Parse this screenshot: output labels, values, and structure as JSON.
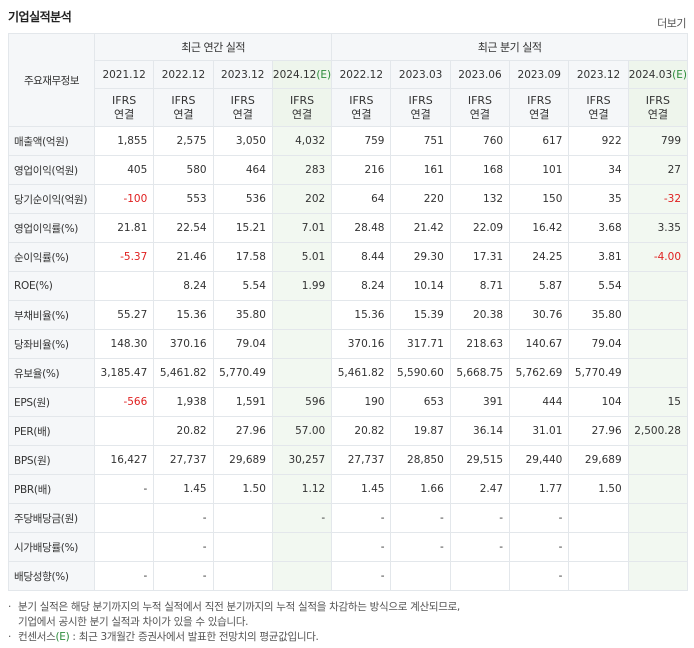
{
  "header": {
    "title": "기업실적분석",
    "more": "더보기"
  },
  "table": {
    "corner": "주요재무정보",
    "annual_label": "최근 연간 실적",
    "quarter_label": "최근 분기 실적",
    "ifrs_top": "IFRS",
    "ifrs_bottom": "연결",
    "annual_periods": [
      "2021.12",
      "2022.12",
      "2023.12",
      "2024.12"
    ],
    "quarter_periods": [
      "2022.12",
      "2023.03",
      "2023.06",
      "2023.09",
      "2023.12",
      "2024.03"
    ],
    "estimate_mark": "(E)",
    "rows": [
      {
        "label": "매출액(억원)",
        "values": [
          "1,855",
          "2,575",
          "3,050",
          "4,032",
          "759",
          "751",
          "760",
          "617",
          "922",
          "799"
        ]
      },
      {
        "label": "영업이익(억원)",
        "values": [
          "405",
          "580",
          "464",
          "283",
          "216",
          "161",
          "168",
          "101",
          "34",
          "27"
        ]
      },
      {
        "label": "당기순이익(억원)",
        "values": [
          "-100",
          "553",
          "536",
          "202",
          "64",
          "220",
          "132",
          "150",
          "35",
          "-32"
        ]
      },
      {
        "label": "영업이익률(%)",
        "values": [
          "21.81",
          "22.54",
          "15.21",
          "7.01",
          "28.48",
          "21.42",
          "22.09",
          "16.42",
          "3.68",
          "3.35"
        ]
      },
      {
        "label": "순이익률(%)",
        "values": [
          "-5.37",
          "21.46",
          "17.58",
          "5.01",
          "8.44",
          "29.30",
          "17.31",
          "24.25",
          "3.81",
          "-4.00"
        ]
      },
      {
        "label": "ROE(%)",
        "values": [
          "",
          "8.24",
          "5.54",
          "1.99",
          "8.24",
          "10.14",
          "8.71",
          "5.87",
          "5.54",
          ""
        ]
      },
      {
        "label": "부채비율(%)",
        "values": [
          "55.27",
          "15.36",
          "35.80",
          "",
          "15.36",
          "15.39",
          "20.38",
          "30.76",
          "35.80",
          ""
        ]
      },
      {
        "label": "당좌비율(%)",
        "values": [
          "148.30",
          "370.16",
          "79.04",
          "",
          "370.16",
          "317.71",
          "218.63",
          "140.67",
          "79.04",
          ""
        ]
      },
      {
        "label": "유보율(%)",
        "values": [
          "3,185.47",
          "5,461.82",
          "5,770.49",
          "",
          "5,461.82",
          "5,590.60",
          "5,668.75",
          "5,762.69",
          "5,770.49",
          ""
        ]
      },
      {
        "label": "EPS(원)",
        "values": [
          "-566",
          "1,938",
          "1,591",
          "596",
          "190",
          "653",
          "391",
          "444",
          "104",
          "15"
        ]
      },
      {
        "label": "PER(배)",
        "values": [
          "",
          "20.82",
          "27.96",
          "57.00",
          "20.82",
          "19.87",
          "36.14",
          "31.01",
          "27.96",
          "2,500.28"
        ]
      },
      {
        "label": "BPS(원)",
        "values": [
          "16,427",
          "27,737",
          "29,689",
          "30,257",
          "27,737",
          "28,850",
          "29,515",
          "29,440",
          "29,689",
          ""
        ]
      },
      {
        "label": "PBR(배)",
        "values": [
          "-",
          "1.45",
          "1.50",
          "1.12",
          "1.45",
          "1.66",
          "2.47",
          "1.77",
          "1.50",
          ""
        ]
      },
      {
        "label": "주당배당금(원)",
        "values": [
          "",
          "-",
          "",
          "-",
          "-",
          "-",
          "-",
          "-",
          "",
          ""
        ]
      },
      {
        "label": "시가배당률(%)",
        "values": [
          "",
          "-",
          "",
          "",
          "-",
          "-",
          "-",
          "-",
          "",
          ""
        ]
      },
      {
        "label": "배당성향(%)",
        "values": [
          "-",
          "-",
          "",
          "",
          "-",
          "",
          "",
          "-",
          "",
          ""
        ]
      }
    ]
  },
  "notes": {
    "line1": "분기 실적은 해당 분기까지의 누적 실적에서 직전 분기까지의 누적 실적을 차감하는 방식으로 계산되므로,",
    "line2": "기업에서 공시한 분기 실적과 차이가 있을 수 있습니다.",
    "line3_pre": "컨센서스",
    "line3_mark": "(E)",
    "line3_post": " : 최근 3개월간 증권사에서 발표한 전망치의 평균값입니다."
  },
  "colors": {
    "ifrs": "#ff6600",
    "negative": "#e02020",
    "estimate": "#2d8c3c",
    "estimate_bg": "#f2f8f1"
  }
}
